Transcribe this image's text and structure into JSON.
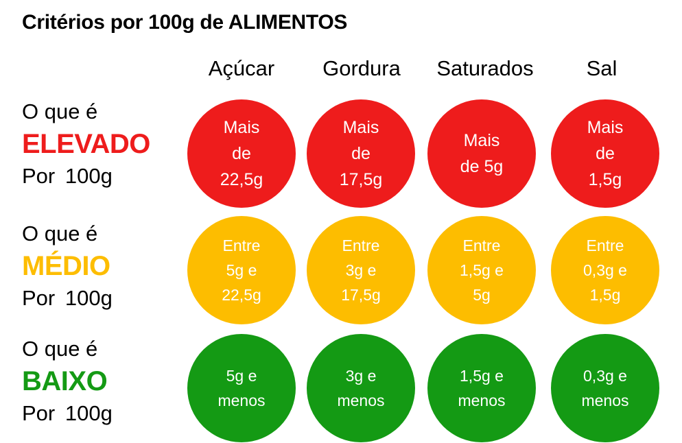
{
  "title": "Critérios por 100g de ALIMENTOS",
  "columns": [
    "Açúcar",
    "Gordura",
    "Saturados",
    "Sal"
  ],
  "rows": [
    {
      "prefix": "O que é",
      "level": "ELEVADO",
      "suffix": "Por  100g",
      "color": "#ee1c1c",
      "cells": [
        "Mais\nde\n22,5g",
        "Mais\nde\n17,5g",
        "Mais\nde 5g",
        "Mais\nde\n1,5g"
      ]
    },
    {
      "prefix": "O que é",
      "level": "MÉDIO",
      "suffix": "Por  100g",
      "color": "#fdbd00",
      "cells": [
        "Entre\n5g e\n22,5g",
        "Entre\n3g e\n17,5g",
        "Entre\n1,5g e\n5g",
        "Entre\n0,3g e\n1,5g"
      ]
    },
    {
      "prefix": "O que é",
      "level": "BAIXO",
      "suffix": "Por  100g",
      "color": "#149a14",
      "cells": [
        "5g e\nmenos",
        "3g e\nmenos",
        "1,5g e\nmenos",
        "0,3g e\nmenos"
      ]
    }
  ]
}
